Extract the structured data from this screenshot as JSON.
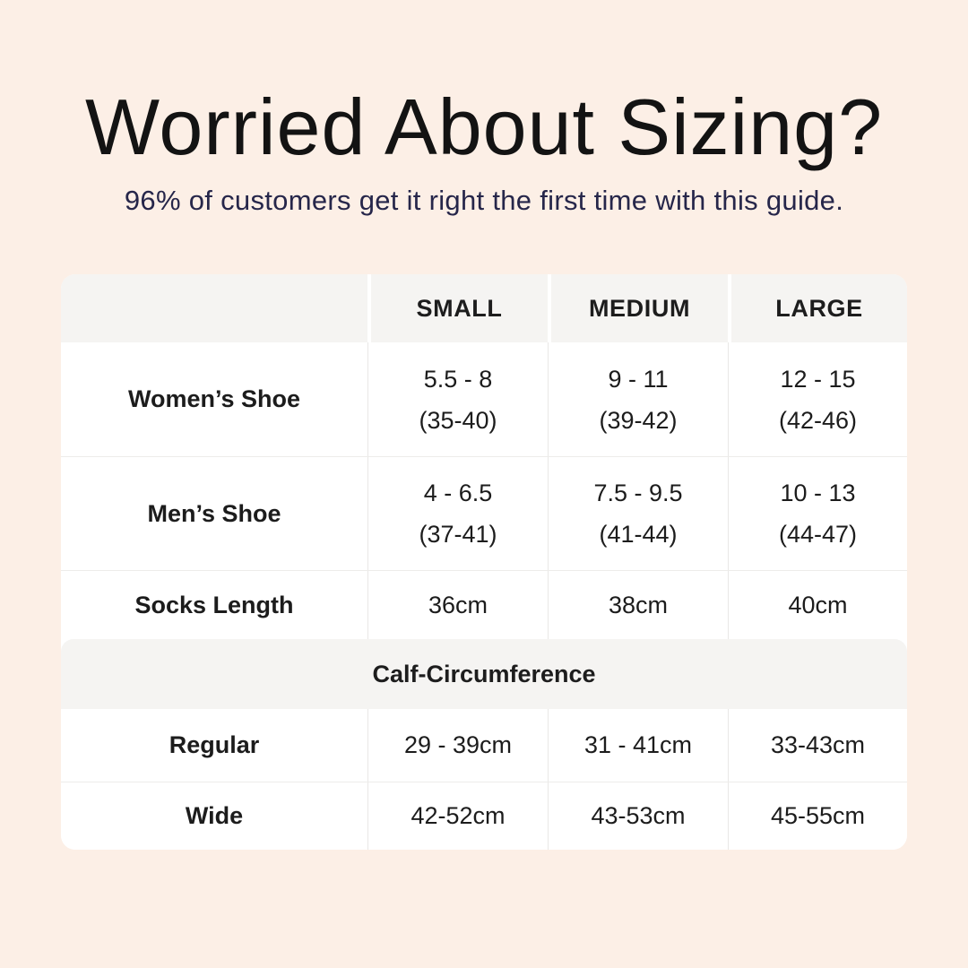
{
  "page": {
    "background_color": "#fcefe6",
    "card_color": "#ffffff",
    "band_color": "#f5f4f2",
    "title_color": "#131313",
    "subtitle_color": "#26264a"
  },
  "header": {
    "title": "Worried About Sizing?",
    "subtitle": "96% of customers get it right the first time with this guide."
  },
  "table": {
    "columns": [
      "SMALL",
      "MEDIUM",
      "LARGE"
    ],
    "shoe_rows": [
      {
        "label": "Women’s Shoe",
        "cells": [
          [
            "5.5 - 8",
            "(35-40)"
          ],
          [
            "9 - 11",
            "(39-42)"
          ],
          [
            "12 - 15",
            "(42-46)"
          ]
        ]
      },
      {
        "label": "Men’s Shoe",
        "cells": [
          [
            "4 - 6.5",
            "(37-41)"
          ],
          [
            "7.5 - 9.5",
            "(41-44)"
          ],
          [
            "10 - 13",
            "(44-47)"
          ]
        ]
      },
      {
        "label": "Socks Length",
        "cells": [
          [
            "36cm"
          ],
          [
            "38cm"
          ],
          [
            "40cm"
          ]
        ]
      }
    ],
    "calf_section": {
      "title": "Calf-Circumference",
      "rows": [
        {
          "label": "Regular",
          "cells": [
            [
              "29 - 39cm"
            ],
            [
              "31 - 41cm"
            ],
            [
              "33-43cm"
            ]
          ]
        },
        {
          "label": "Wide",
          "cells": [
            [
              "42-52cm"
            ],
            [
              "43-53cm"
            ],
            [
              "45-55cm"
            ]
          ]
        }
      ]
    }
  },
  "chart_data": {
    "type": "table",
    "title": "Worried About Sizing?",
    "subtitle": "96% of customers get it right the first time with this guide.",
    "columns": [
      "",
      "SMALL",
      "MEDIUM",
      "LARGE"
    ],
    "rows": [
      [
        "Women’s Shoe",
        "5.5 - 8 (35-40)",
        "9 - 11 (39-42)",
        "12 - 15 (42-46)"
      ],
      [
        "Men’s Shoe",
        "4 - 6.5 (37-41)",
        "7.5 - 9.5 (41-44)",
        "10 - 13 (44-47)"
      ],
      [
        "Socks Length",
        "36cm",
        "38cm",
        "40cm"
      ],
      [
        "Calf-Circumference",
        "",
        "",
        ""
      ],
      [
        "Regular",
        "29 - 39cm",
        "31 - 41cm",
        "33-43cm"
      ],
      [
        "Wide",
        "42-52cm",
        "43-53cm",
        "45-55cm"
      ]
    ],
    "layout": {
      "section_band_row": 3,
      "header_background": "#f5f4f2",
      "grid": "light"
    }
  }
}
